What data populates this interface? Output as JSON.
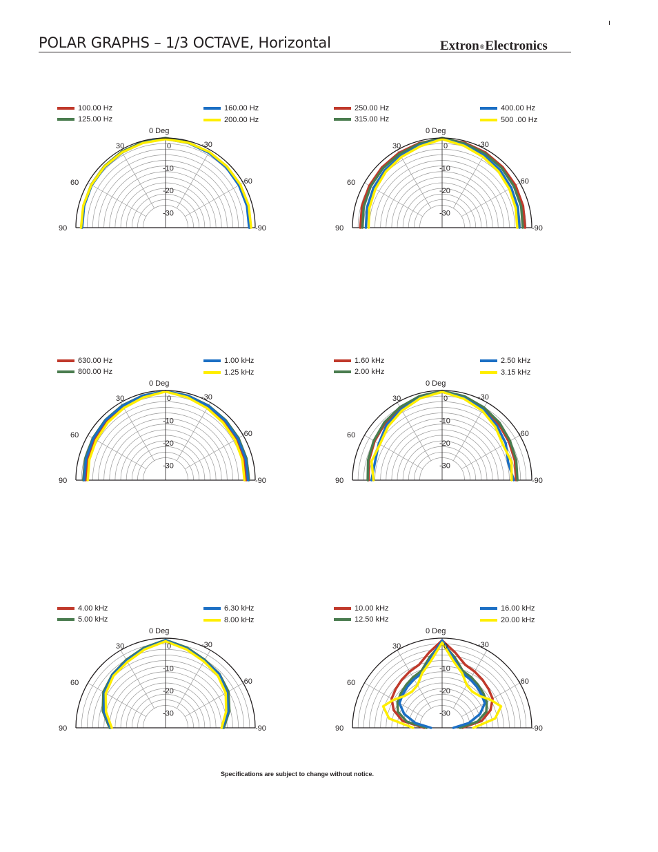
{
  "header": {
    "title": "POLAR GRAPHS – 1/3 OCTAVE, Horizontal",
    "brand_left": "Extron",
    "brand_mark": "®",
    "brand_right": "Electronics"
  },
  "footer": {
    "note": "Specifications are subject to change without notice."
  },
  "colors": {
    "red": "#c0392b",
    "green": "#4a7c4f",
    "blue": "#1b6fc4",
    "yellow": "#ffee00",
    "ink": "#231f20",
    "grid": "#999999"
  },
  "chart_data": [
    {
      "type": "polar",
      "angle_labels": [
        "0 Deg",
        "30",
        "-30",
        "60",
        "-60",
        "90",
        "-90"
      ],
      "radial_labels": [
        "0",
        "-10",
        "-20",
        "-30"
      ],
      "theta_range_deg": [
        -90,
        90
      ],
      "r_range_db": [
        -40,
        0
      ],
      "series": [
        {
          "name": "100.00 Hz",
          "color": "#c0392b",
          "angles": [
            -90,
            -75,
            -60,
            -45,
            -30,
            -15,
            0,
            15,
            30,
            45,
            60,
            75,
            90
          ],
          "values": [
            -2.5,
            -2.2,
            -2,
            -1.6,
            -1.2,
            -0.8,
            -0.3,
            -0.6,
            -1,
            -1.4,
            -1.8,
            -2.2,
            -2.6
          ]
        },
        {
          "name": "125.00 Hz",
          "color": "#4a7c4f",
          "angles": [
            -90,
            -75,
            -60,
            -45,
            -30,
            -15,
            0,
            15,
            30,
            45,
            60,
            75,
            90
          ],
          "values": [
            -2.4,
            -2.1,
            -1.9,
            -1.5,
            -1.1,
            -0.7,
            0,
            -0.5,
            -0.9,
            -1.3,
            -1.7,
            -2.1,
            -2.5
          ]
        },
        {
          "name": "160.00 Hz",
          "color": "#1b6fc4",
          "angles": [
            -90,
            -75,
            -60,
            -45,
            -30,
            -15,
            0,
            15,
            30,
            45,
            60,
            75,
            90
          ],
          "values": [
            -2.7,
            -2.4,
            -2.2,
            -1.8,
            -1.4,
            -0.9,
            -0.4,
            -0.8,
            -1.3,
            -1.7,
            -2,
            -2.4,
            -2.8
          ]
        },
        {
          "name": "200.00 Hz",
          "color": "#ffee00",
          "angles": [
            -90,
            -75,
            -60,
            -45,
            -30,
            -15,
            0,
            15,
            30,
            45,
            60,
            75,
            90
          ],
          "values": [
            -1.8,
            -1.6,
            -1.5,
            -1.3,
            -1,
            -0.8,
            -0.5,
            -0.9,
            -1.2,
            -1.5,
            -1.8,
            -2,
            -2.3
          ]
        }
      ]
    },
    {
      "type": "polar",
      "angle_labels": [
        "0 Deg",
        "30",
        "-30",
        "60",
        "-60",
        "90",
        "-90"
      ],
      "radial_labels": [
        "0",
        "-10",
        "-20",
        "-30"
      ],
      "theta_range_deg": [
        -90,
        90
      ],
      "r_range_db": [
        -40,
        0
      ],
      "series": [
        {
          "name": "250.00 Hz",
          "color": "#c0392b",
          "angles": [
            -90,
            -75,
            -60,
            -45,
            -30,
            -15,
            0,
            15,
            30,
            45,
            60,
            75,
            90
          ],
          "values": [
            -3,
            -2.6,
            -2.2,
            -1.8,
            -1.3,
            -0.8,
            -0.4,
            -0.9,
            -1.5,
            -2,
            -2.5,
            -3,
            -3.5
          ]
        },
        {
          "name": "315.00 Hz",
          "color": "#4a7c4f",
          "angles": [
            -90,
            -75,
            -60,
            -45,
            -30,
            -15,
            0,
            15,
            30,
            45,
            60,
            75,
            90
          ],
          "values": [
            -4,
            -3.5,
            -3,
            -2.4,
            -1.8,
            -1.1,
            0,
            -1.2,
            -2,
            -2.6,
            -3.2,
            -3.8,
            -4.4
          ]
        },
        {
          "name": "400.00 Hz",
          "color": "#1b6fc4",
          "angles": [
            -90,
            -75,
            -60,
            -45,
            -30,
            -15,
            0,
            15,
            30,
            45,
            60,
            75,
            90
          ],
          "values": [
            -5.5,
            -5,
            -4.4,
            -3.6,
            -2.8,
            -1.8,
            -0.5,
            -1.9,
            -3,
            -3.8,
            -4.6,
            -5.3,
            -6
          ]
        },
        {
          "name": "500 .00 Hz",
          "color": "#ffee00",
          "angles": [
            -90,
            -75,
            -60,
            -45,
            -30,
            -15,
            0,
            15,
            30,
            45,
            60,
            75,
            90
          ],
          "values": [
            -6.5,
            -6,
            -5.4,
            -4.5,
            -3.5,
            -2.2,
            -0.5,
            -2.4,
            -3.6,
            -4.6,
            -5.6,
            -6.4,
            -7.2
          ]
        }
      ]
    },
    {
      "type": "polar",
      "angle_labels": [
        "0 Deg",
        "30",
        "-30",
        "60",
        "-60",
        "90",
        "-90"
      ],
      "radial_labels": [
        "0",
        "-10",
        "-20",
        "-30"
      ],
      "theta_range_deg": [
        -90,
        90
      ],
      "r_range_db": [
        -40,
        0
      ],
      "series": [
        {
          "name": "630.00 Hz",
          "color": "#c0392b",
          "angles": [
            -90,
            -75,
            -60,
            -45,
            -30,
            -15,
            0,
            15,
            30,
            45,
            60,
            75,
            90
          ],
          "values": [
            -4,
            -3.8,
            -3.6,
            -3.2,
            -2.4,
            -1.4,
            -0.4,
            -1.3,
            -2.2,
            -3,
            -3.6,
            -4,
            -4.4
          ]
        },
        {
          "name": "800.00 Hz",
          "color": "#4a7c4f",
          "angles": [
            -90,
            -75,
            -60,
            -45,
            -30,
            -15,
            0,
            15,
            30,
            45,
            60,
            75,
            90
          ],
          "values": [
            -2.8,
            -2.6,
            -2.4,
            -2.1,
            -1.6,
            -1,
            -0.3,
            -0.9,
            -1.5,
            -2,
            -2.5,
            -2.9,
            -3.3
          ]
        },
        {
          "name": "1.00 kHz",
          "color": "#1b6fc4",
          "angles": [
            -90,
            -75,
            -60,
            -45,
            -30,
            -15,
            0,
            15,
            30,
            45,
            60,
            75,
            90
          ],
          "values": [
            -3.2,
            -3,
            -2.8,
            -2.4,
            -1.8,
            -1.1,
            -0.3,
            -1,
            -1.7,
            -2.2,
            -2.8,
            -3.3,
            -3.7
          ]
        },
        {
          "name": "1.25 kHz",
          "color": "#ffee00",
          "angles": [
            -90,
            -75,
            -60,
            -45,
            -30,
            -15,
            0,
            15,
            30,
            45,
            60,
            75,
            90
          ],
          "values": [
            -4.8,
            -4.5,
            -4.2,
            -3.7,
            -2.9,
            -1.8,
            -0.5,
            -1.8,
            -2.8,
            -3.6,
            -4.3,
            -4.8,
            -5.3
          ]
        }
      ]
    },
    {
      "type": "polar",
      "angle_labels": [
        "0 Deg",
        "30",
        "-30",
        "60",
        "-60",
        "90",
        "-90"
      ],
      "radial_labels": [
        "0",
        "-10",
        "-20",
        "-30"
      ],
      "theta_range_deg": [
        -90,
        90
      ],
      "r_range_db": [
        -40,
        0
      ],
      "series": [
        {
          "name": "1.60 kHz",
          "color": "#c0392b",
          "angles": [
            -90,
            -75,
            -60,
            -45,
            -30,
            -15,
            0,
            15,
            30,
            45,
            60,
            75,
            90
          ],
          "values": [
            -7,
            -6.4,
            -5.6,
            -4.4,
            -3,
            -1.6,
            -0.4,
            -1.5,
            -2.8,
            -4,
            -5.2,
            -6.2,
            -7.2
          ]
        },
        {
          "name": "2.00 kHz",
          "color": "#4a7c4f",
          "angles": [
            -90,
            -75,
            -60,
            -45,
            -30,
            -15,
            0,
            15,
            30,
            45,
            60,
            75,
            90
          ],
          "values": [
            -6.4,
            -5.8,
            -5,
            -3.8,
            -2.6,
            -1.3,
            -0.2,
            -1.2,
            -2.4,
            -3.6,
            -4.8,
            -5.8,
            -6.8
          ]
        },
        {
          "name": "2.50 kHz",
          "color": "#1b6fc4",
          "angles": [
            -90,
            -75,
            -60,
            -45,
            -30,
            -15,
            0,
            15,
            30,
            45,
            60,
            75,
            90
          ],
          "values": [
            -8,
            -9.5,
            -7.2,
            -5.5,
            -3.6,
            -2,
            -0.6,
            -2,
            -3.6,
            -5,
            -7.4,
            -9,
            -8.5
          ]
        },
        {
          "name": "3.15 kHz",
          "color": "#ffee00",
          "angles": [
            -90,
            -75,
            -60,
            -45,
            -30,
            -15,
            0,
            15,
            30,
            45,
            60,
            75,
            90
          ],
          "values": [
            -9,
            -8,
            -8.6,
            -6.4,
            -4.2,
            -2.4,
            -0.6,
            -2.2,
            -4.2,
            -6,
            -8,
            -7.4,
            -9.4
          ]
        }
      ]
    },
    {
      "type": "polar",
      "angle_labels": [
        "0 Deg",
        "30",
        "-30",
        "60",
        "-60",
        "90",
        "-90"
      ],
      "radial_labels": [
        "0",
        "-10",
        "-20",
        "-30"
      ],
      "theta_range_deg": [
        -90,
        90
      ],
      "r_range_db": [
        -40,
        0
      ],
      "series": [
        {
          "name": "4.00 kHz",
          "color": "#c0392b",
          "angles": [
            -90,
            -75,
            -60,
            -45,
            -30,
            -15,
            0,
            15,
            30,
            45,
            60,
            75,
            90
          ],
          "values": [
            -15,
            -11,
            -8,
            -6.5,
            -5.2,
            -3.2,
            -1,
            -3.2,
            -5.4,
            -6.8,
            -8.4,
            -11.5,
            -16
          ]
        },
        {
          "name": "5.00 kHz",
          "color": "#4a7c4f",
          "angles": [
            -90,
            -75,
            -60,
            -45,
            -30,
            -15,
            0,
            15,
            30,
            45,
            60,
            75,
            90
          ],
          "values": [
            -14,
            -10.5,
            -7.6,
            -6,
            -5,
            -3,
            -0.8,
            -3,
            -5,
            -6.4,
            -8,
            -11,
            -15
          ]
        },
        {
          "name": "6.30 kHz",
          "color": "#1b6fc4",
          "angles": [
            -90,
            -75,
            -60,
            -45,
            -30,
            -15,
            0,
            15,
            30,
            45,
            60,
            75,
            90
          ],
          "values": [
            -14.5,
            -11,
            -8.4,
            -6.2,
            -5.4,
            -3.4,
            -1,
            -3.4,
            -5.4,
            -6.6,
            -8.6,
            -11.5,
            -15.5
          ]
        },
        {
          "name": "8.00 kHz",
          "color": "#ffee00",
          "angles": [
            -90,
            -75,
            -60,
            -45,
            -30,
            -15,
            0,
            15,
            30,
            45,
            60,
            75,
            90
          ],
          "values": [
            -15,
            -12,
            -9,
            -7,
            -5.8,
            -3.8,
            -1.4,
            -3.8,
            -6,
            -7.2,
            -9.2,
            -12.5,
            -16
          ]
        }
      ]
    },
    {
      "type": "polar",
      "angle_labels": [
        "0 Deg",
        "30",
        "-30",
        "60",
        "-60",
        "90",
        "-90"
      ],
      "radial_labels": [
        "0",
        "-10",
        "-20",
        "-30"
      ],
      "theta_range_deg": [
        -90,
        90
      ],
      "r_range_db": [
        -40,
        0
      ],
      "series": [
        {
          "name": "10.00 kHz",
          "color": "#c0392b",
          "angles": [
            -90,
            -80,
            -70,
            -60,
            -50,
            -40,
            -30,
            -20,
            -10,
            0,
            10,
            20,
            30,
            40,
            50,
            60,
            70,
            80,
            90
          ],
          "values": [
            -31,
            -22,
            -17,
            -14,
            -13,
            -12,
            -11,
            -10,
            -6,
            -1,
            -6,
            -10,
            -11,
            -12,
            -13,
            -14,
            -17,
            -22,
            -32
          ]
        },
        {
          "name": "12.50 kHz",
          "color": "#4a7c4f",
          "angles": [
            -90,
            -80,
            -70,
            -60,
            -50,
            -40,
            -30,
            -20,
            -10,
            0,
            10,
            20,
            30,
            40,
            50,
            60,
            70,
            80,
            90
          ],
          "values": [
            -32,
            -24,
            -19,
            -17,
            -16,
            -15,
            -14,
            -13,
            -8,
            -2,
            -8,
            -13,
            -14,
            -15,
            -16,
            -17,
            -19,
            -24,
            -33
          ]
        },
        {
          "name": "16.00 kHz",
          "color": "#1b6fc4",
          "angles": [
            -90,
            -80,
            -70,
            -60,
            -50,
            -40,
            -30,
            -20,
            -10,
            0,
            10,
            20,
            30,
            40,
            50,
            60,
            70,
            80,
            90
          ],
          "values": [
            -35,
            -28,
            -22,
            -18,
            -17,
            -16,
            -15,
            -14,
            -9,
            -1,
            -9,
            -14,
            -15,
            -16,
            -17,
            -18,
            -22,
            -28,
            -35
          ]
        },
        {
          "name": "20.00 kHz",
          "color": "#ffee00",
          "angles": [
            -90,
            -80,
            -70,
            -60,
            -50,
            -40,
            -30,
            -20,
            -10,
            0,
            10,
            20,
            30,
            40,
            50,
            60,
            70,
            80,
            90
          ],
          "values": [
            -26,
            -16,
            -12,
            -15,
            -18,
            -19,
            -18,
            -14,
            -10,
            -2,
            -10,
            -14,
            -18,
            -19,
            -18,
            -15,
            -12,
            -16,
            -27
          ]
        }
      ]
    }
  ]
}
